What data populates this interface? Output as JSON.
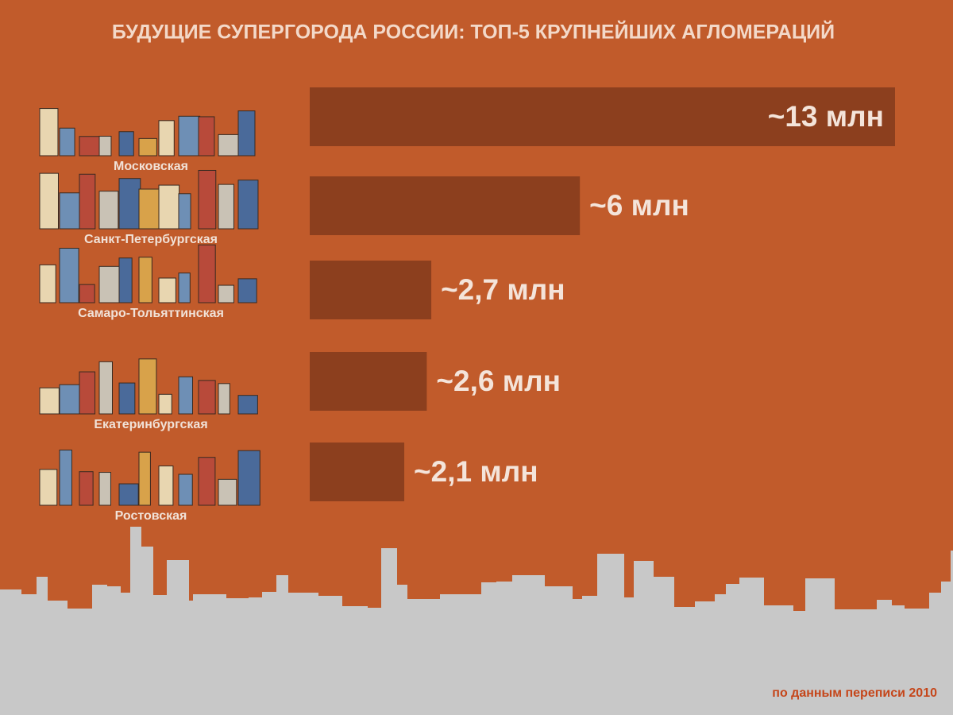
{
  "chart_data": {
    "type": "bar",
    "orientation": "horizontal",
    "title": "БУДУЩИЕ СУПЕРГОРОДА РОССИИ: ТОП-5 КРУПНЕЙШИХ АГЛОМЕРАЦИЙ",
    "categories": [
      "Московская",
      "Санкт-Петербургская",
      "Самаро-Тольяттинская",
      "Екатеринбургская",
      "Ростовская"
    ],
    "values": [
      13,
      6,
      2.7,
      2.6,
      2.1
    ],
    "value_labels": [
      "~13 млн",
      "~6 млн",
      "~2,7 млн",
      "~2,6 млн",
      "~2,1 млн"
    ],
    "color": "#8c3f1e",
    "note": "по данным переписи 2010"
  }
}
